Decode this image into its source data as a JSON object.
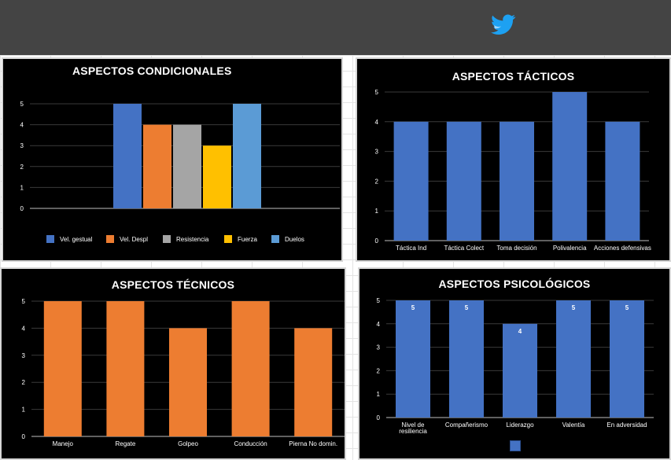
{
  "colors": {
    "topbar": "#444444",
    "panel_bg": "#000000",
    "blue": "#4472c4",
    "orange": "#ed7d31",
    "gray": "#a5a5a5",
    "yellow": "#ffc000",
    "lightblue": "#5b9bd5",
    "twitter": "#1da1f2"
  },
  "header": {
    "icon": "twitter-bird-icon"
  },
  "chart_data": [
    {
      "type": "bar",
      "title": "ASPECTOS CONDICIONALES",
      "categories": [
        ""
      ],
      "series": [
        {
          "name": "Vel. gestual",
          "values": [
            5
          ],
          "color": "#4472c4"
        },
        {
          "name": "Vel. Despl",
          "values": [
            4
          ],
          "color": "#ed7d31"
        },
        {
          "name": "Resistencia",
          "values": [
            4
          ],
          "color": "#a5a5a5"
        },
        {
          "name": "Fuerza",
          "values": [
            3
          ],
          "color": "#ffc000"
        },
        {
          "name": "Duelos",
          "values": [
            5
          ],
          "color": "#5b9bd5"
        }
      ],
      "ylim": [
        0,
        5
      ],
      "yticks": [
        0,
        1,
        2,
        3,
        4,
        5
      ],
      "legend": "bottom",
      "grid": true
    },
    {
      "type": "bar",
      "title": "ASPECTOS TÁCTICOS",
      "categories": [
        "Táctica Ind",
        "Táctica Colect",
        "Toma decisión",
        "Polivalencia",
        "Acciones defensivas"
      ],
      "values": [
        4,
        4,
        4,
        5,
        4
      ],
      "color": "#4472c4",
      "ylim": [
        0,
        5
      ],
      "yticks": [
        0,
        1,
        2,
        3,
        4,
        5
      ],
      "grid": true
    },
    {
      "type": "bar",
      "title": "ASPECTOS TÉCNICOS",
      "categories": [
        "Manejo",
        "Regate",
        "Golpeo",
        "Conducción",
        "Pierna No domin."
      ],
      "values": [
        5,
        5,
        4,
        5,
        4
      ],
      "color": "#ed7d31",
      "ylim": [
        0,
        5
      ],
      "yticks": [
        0,
        1,
        2,
        3,
        4,
        5
      ],
      "grid": true
    },
    {
      "type": "bar",
      "title": "ASPECTOS PSICOLÓGICOS",
      "categories": [
        "Nivel de resiliencia",
        "Compañerismo",
        "Liderazgo",
        "Valentía",
        "En adversidad"
      ],
      "values": [
        5,
        5,
        4,
        5,
        5
      ],
      "data_labels": [
        "5",
        "5",
        "4",
        "5",
        "5"
      ],
      "color": "#4472c4",
      "ylim": [
        0,
        5
      ],
      "yticks": [
        0,
        1,
        2,
        3,
        4,
        5
      ],
      "grid": true,
      "legend": "bottom"
    }
  ]
}
